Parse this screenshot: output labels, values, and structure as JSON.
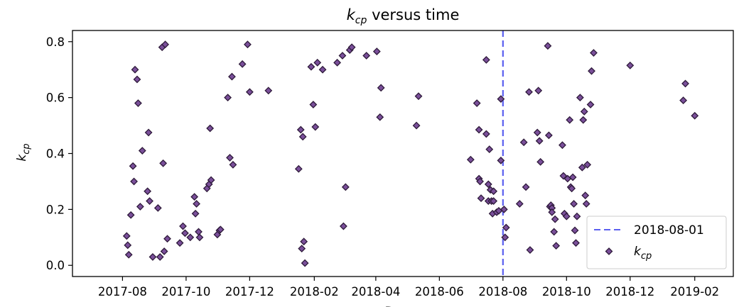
{
  "chart_data": {
    "type": "scatter",
    "title_main": "k",
    "title_sub": "cp",
    "title_rest": " versus time",
    "ylabel_main": "k",
    "ylabel_sub": "cp",
    "xlabel": "D",
    "ylim": [
      -0.04,
      0.84
    ],
    "xlim": [
      "2017-06-14",
      "2019-03-10"
    ],
    "yticks": [
      0.0,
      0.2,
      0.4,
      0.6,
      0.8
    ],
    "ytick_labels": [
      "0.0",
      "0.2",
      "0.4",
      "0.6",
      "0.8"
    ],
    "xticks": [
      "2017-08-01",
      "2017-10-01",
      "2017-12-01",
      "2018-02-01",
      "2018-04-01",
      "2018-06-01",
      "2018-08-01",
      "2018-10-01",
      "2018-12-01",
      "2019-02-01"
    ],
    "xtick_labels": [
      "2017-08",
      "2017-10",
      "2017-12",
      "2018-02",
      "2018-04",
      "2018-06",
      "2018-08",
      "2018-10",
      "2018-12",
      "2019-02"
    ],
    "grid": false,
    "legend_position": "lower-right",
    "reference_line": {
      "date": "2018-08-01",
      "label": "2018-08-01",
      "color": "#5b5ff0",
      "style": "dashed"
    },
    "series": [
      {
        "name_main": "k",
        "name_sub": "cp",
        "marker": "diamond",
        "color": "#7a4f9a",
        "edge_color": "#2e1a3a",
        "points": [
          [
            "2017-08-05",
            0.105
          ],
          [
            "2017-08-06",
            0.072
          ],
          [
            "2017-08-07",
            0.038
          ],
          [
            "2017-08-09",
            0.18
          ],
          [
            "2017-08-11",
            0.355
          ],
          [
            "2017-08-12",
            0.3
          ],
          [
            "2017-08-13",
            0.7
          ],
          [
            "2017-08-15",
            0.665
          ],
          [
            "2017-08-16",
            0.58
          ],
          [
            "2017-08-18",
            0.21
          ],
          [
            "2017-08-20",
            0.41
          ],
          [
            "2017-08-25",
            0.265
          ],
          [
            "2017-08-26",
            0.475
          ],
          [
            "2017-08-27",
            0.23
          ],
          [
            "2017-08-30",
            0.03
          ],
          [
            "2017-09-04",
            0.205
          ],
          [
            "2017-09-06",
            0.03
          ],
          [
            "2017-09-08",
            0.78
          ],
          [
            "2017-09-09",
            0.365
          ],
          [
            "2017-09-10",
            0.05
          ],
          [
            "2017-09-11",
            0.79
          ],
          [
            "2017-09-13",
            0.095
          ],
          [
            "2017-09-25",
            0.08
          ],
          [
            "2017-09-28",
            0.14
          ],
          [
            "2017-09-30",
            0.115
          ],
          [
            "2017-10-05",
            0.1
          ],
          [
            "2017-10-09",
            0.245
          ],
          [
            "2017-10-10",
            0.185
          ],
          [
            "2017-10-11",
            0.22
          ],
          [
            "2017-10-13",
            0.12
          ],
          [
            "2017-10-14",
            0.1
          ],
          [
            "2017-10-21",
            0.275
          ],
          [
            "2017-10-23",
            0.29
          ],
          [
            "2017-10-24",
            0.49
          ],
          [
            "2017-10-25",
            0.305
          ],
          [
            "2017-10-31",
            0.11
          ],
          [
            "2017-11-02",
            0.125
          ],
          [
            "2017-11-03",
            0.128
          ],
          [
            "2017-11-10",
            0.6
          ],
          [
            "2017-11-12",
            0.385
          ],
          [
            "2017-11-14",
            0.675
          ],
          [
            "2017-11-15",
            0.36
          ],
          [
            "2017-11-24",
            0.72
          ],
          [
            "2017-11-29",
            0.79
          ],
          [
            "2017-12-01",
            0.62
          ],
          [
            "2017-12-19",
            0.625
          ],
          [
            "2018-01-17",
            0.345
          ],
          [
            "2018-01-19",
            0.485
          ],
          [
            "2018-01-20",
            0.06
          ],
          [
            "2018-01-21",
            0.46
          ],
          [
            "2018-01-22",
            0.085
          ],
          [
            "2018-01-23",
            0.008
          ],
          [
            "2018-01-29",
            0.71
          ],
          [
            "2018-01-31",
            0.575
          ],
          [
            "2018-02-02",
            0.495
          ],
          [
            "2018-02-04",
            0.725
          ],
          [
            "2018-02-09",
            0.7
          ],
          [
            "2018-02-23",
            0.725
          ],
          [
            "2018-02-28",
            0.75
          ],
          [
            "2018-03-01",
            0.14
          ],
          [
            "2018-03-03",
            0.28
          ],
          [
            "2018-03-07",
            0.77
          ],
          [
            "2018-03-09",
            0.78
          ],
          [
            "2018-03-23",
            0.75
          ],
          [
            "2018-04-02",
            0.765
          ],
          [
            "2018-04-05",
            0.53
          ],
          [
            "2018-04-06",
            0.635
          ],
          [
            "2018-05-10",
            0.5
          ],
          [
            "2018-05-12",
            0.605
          ],
          [
            "2018-07-01",
            0.378
          ],
          [
            "2018-07-07",
            0.58
          ],
          [
            "2018-07-09",
            0.485
          ],
          [
            "2018-07-09",
            0.31
          ],
          [
            "2018-07-10",
            0.3
          ],
          [
            "2018-07-11",
            0.24
          ],
          [
            "2018-07-16",
            0.47
          ],
          [
            "2018-07-16",
            0.735
          ],
          [
            "2018-07-18",
            0.23
          ],
          [
            "2018-07-18",
            0.29
          ],
          [
            "2018-07-19",
            0.415
          ],
          [
            "2018-07-20",
            0.27
          ],
          [
            "2018-07-21",
            0.23
          ],
          [
            "2018-07-22",
            0.185
          ],
          [
            "2018-07-23",
            0.265
          ],
          [
            "2018-07-23",
            0.23
          ],
          [
            "2018-07-26",
            0.19
          ],
          [
            "2018-07-28",
            0.195
          ],
          [
            "2018-07-30",
            0.375
          ],
          [
            "2018-07-30",
            0.595
          ],
          [
            "2018-08-02",
            0.2
          ],
          [
            "2018-08-03",
            0.1
          ],
          [
            "2018-08-04",
            0.135
          ],
          [
            "2018-08-17",
            0.22
          ],
          [
            "2018-08-21",
            0.44
          ],
          [
            "2018-08-23",
            0.28
          ],
          [
            "2018-08-26",
            0.62
          ],
          [
            "2018-08-27",
            0.055
          ],
          [
            "2018-09-03",
            0.475
          ],
          [
            "2018-09-04",
            0.625
          ],
          [
            "2018-09-05",
            0.445
          ],
          [
            "2018-09-06",
            0.37
          ],
          [
            "2018-09-13",
            0.785
          ],
          [
            "2018-09-14",
            0.465
          ],
          [
            "2018-09-15",
            0.21
          ],
          [
            "2018-09-16",
            0.215
          ],
          [
            "2018-09-17",
            0.205
          ],
          [
            "2018-09-17",
            0.19
          ],
          [
            "2018-09-19",
            0.12
          ],
          [
            "2018-09-20",
            0.165
          ],
          [
            "2018-09-21",
            0.07
          ],
          [
            "2018-09-27",
            0.43
          ],
          [
            "2018-09-28",
            0.32
          ],
          [
            "2018-09-29",
            0.185
          ],
          [
            "2018-10-01",
            0.175
          ],
          [
            "2018-10-02",
            0.31
          ],
          [
            "2018-10-04",
            0.52
          ],
          [
            "2018-10-05",
            0.28
          ],
          [
            "2018-10-06",
            0.275
          ],
          [
            "2018-10-07",
            0.315
          ],
          [
            "2018-10-08",
            0.22
          ],
          [
            "2018-10-09",
            0.125
          ],
          [
            "2018-10-10",
            0.08
          ],
          [
            "2018-10-11",
            0.175
          ],
          [
            "2018-10-14",
            0.6
          ],
          [
            "2018-10-16",
            0.35
          ],
          [
            "2018-10-17",
            0.52
          ],
          [
            "2018-10-18",
            0.55
          ],
          [
            "2018-10-19",
            0.25
          ],
          [
            "2018-10-20",
            0.22
          ],
          [
            "2018-10-21",
            0.36
          ],
          [
            "2018-10-24",
            0.575
          ],
          [
            "2018-10-25",
            0.695
          ],
          [
            "2018-10-27",
            0.76
          ],
          [
            "2018-12-01",
            0.715
          ],
          [
            "2019-01-21",
            0.59
          ],
          [
            "2019-01-23",
            0.65
          ],
          [
            "2019-02-01",
            0.535
          ]
        ]
      }
    ]
  }
}
